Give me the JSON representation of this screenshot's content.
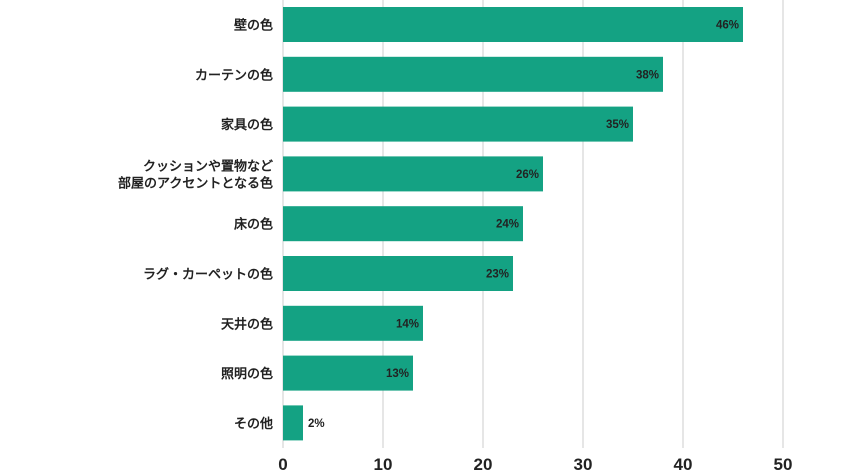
{
  "chart_data": {
    "type": "bar",
    "orientation": "horizontal",
    "categories": [
      "壁の色",
      "カーテンの色",
      "家具の色",
      [
        "クッションや置物など",
        "部屋のアクセントとなる色"
      ],
      "床の色",
      "ラグ・カーペットの色",
      "天井の色",
      "照明の色",
      "その他"
    ],
    "values": [
      46,
      38,
      35,
      26,
      24,
      23,
      14,
      13,
      2
    ],
    "value_labels": [
      "46%",
      "38%",
      "35%",
      "26%",
      "24%",
      "23%",
      "14%",
      "13%",
      "2%"
    ],
    "xlim": [
      0,
      50
    ],
    "xticks": [
      0,
      10,
      20,
      30,
      40,
      50
    ],
    "xtick_labels": [
      "0",
      "10",
      "20",
      "30",
      "40",
      "50"
    ],
    "grid": "vertical",
    "legend": "none",
    "colors": {
      "bar": "#14a283",
      "grid": "#cccccc",
      "text": "#222222"
    }
  }
}
